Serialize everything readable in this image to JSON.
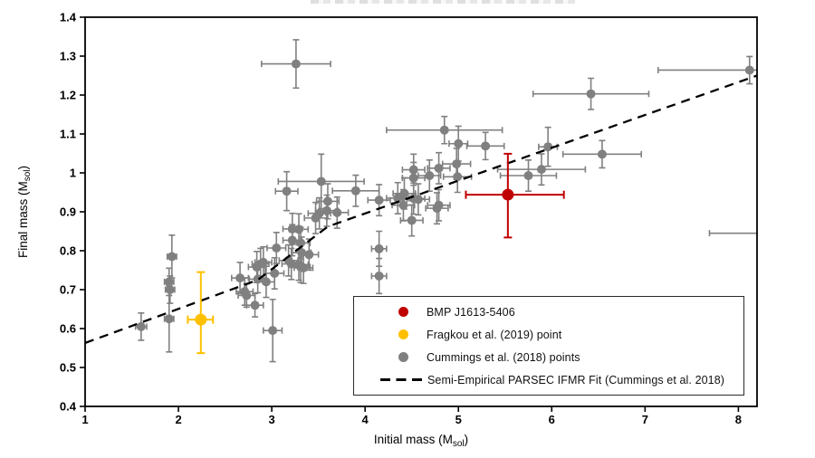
{
  "chart_data": {
    "type": "scatter",
    "title": "",
    "xlabel_pre": "Initial mass (M",
    "xlabel_sub": "sol",
    "xlabel_post": ")",
    "ylabel_pre": "Final mass (M",
    "ylabel_sub": "sol",
    "ylabel_post": ")",
    "x_range": [
      1,
      8.2
    ],
    "y_range": [
      0.4,
      1.4
    ],
    "x_ticks": [
      "1",
      "2",
      "3",
      "4",
      "5",
      "6",
      "7",
      "8"
    ],
    "y_ticks": [
      "0.4",
      "0.5",
      "0.6",
      "0.7",
      "0.8",
      "0.9",
      "1",
      "1.1",
      "1.2",
      "1.3",
      "1.4"
    ],
    "grid": false,
    "legend_position": "inside-bottom-right",
    "frame_color": "#000000",
    "background_color": "#ffffff",
    "series": [
      {
        "name": "BMP J1613-5406",
        "type": "points",
        "color": "#C00000",
        "marker_radius": 6.5,
        "points": [
          {
            "x": 5.53,
            "y": 0.944,
            "exl": 0.45,
            "exr": 0.6,
            "eyl": 0.11,
            "eyu": 0.105
          }
        ]
      },
      {
        "name": "Fragkou et al. (2019) point",
        "type": "points",
        "color": "#FFC000",
        "marker_radius": 6.5,
        "points": [
          {
            "x": 2.24,
            "y": 0.623,
            "exl": 0.14,
            "exr": 0.13,
            "eyl": 0.086,
            "eyu": 0.122
          }
        ]
      },
      {
        "name": "Cummings et al. (2018) points",
        "type": "points",
        "color": "#808080",
        "marker_radius": 5,
        "points_xyee": [
          [
            1.6,
            0.605,
            0.06,
            0.035
          ],
          [
            1.93,
            0.785,
            0.05,
            0.055
          ],
          [
            1.9,
            0.72,
            0.05,
            0.035
          ],
          [
            1.91,
            0.7,
            0.05,
            0.035
          ],
          [
            1.9,
            0.625,
            0.05,
            0.085
          ],
          [
            2.66,
            0.73,
            0.09,
            0.04
          ],
          [
            2.71,
            0.695,
            0.09,
            0.035
          ],
          [
            2.73,
            0.685,
            0.09,
            0.03
          ],
          [
            2.82,
            0.66,
            0.09,
            0.03
          ],
          [
            2.84,
            0.758,
            0.09,
            0.04
          ],
          [
            2.85,
            0.727,
            0.09,
            0.035
          ],
          [
            2.88,
            0.766,
            0.09,
            0.04
          ],
          [
            2.91,
            0.77,
            0.09,
            0.04
          ],
          [
            2.94,
            0.72,
            0.09,
            0.04
          ],
          [
            3.01,
            0.595,
            0.1,
            0.08
          ],
          [
            3.03,
            0.742,
            0.1,
            0.04
          ],
          [
            3.05,
            0.807,
            0.1,
            0.04
          ],
          [
            3.16,
            0.953,
            0.12,
            0.05
          ],
          [
            3.18,
            0.775,
            0.1,
            0.04
          ],
          [
            3.21,
            0.766,
            0.1,
            0.04
          ],
          [
            3.22,
            0.856,
            0.1,
            0.04
          ],
          [
            3.22,
            0.827,
            0.1,
            0.04
          ],
          [
            3.26,
            1.28,
            0.37,
            0.062
          ],
          [
            3.29,
            0.855,
            0.1,
            0.04
          ],
          [
            3.29,
            0.764,
            0.1,
            0.04
          ],
          [
            3.31,
            0.82,
            0.1,
            0.04
          ],
          [
            3.31,
            0.758,
            0.1,
            0.04
          ],
          [
            3.32,
            0.795,
            0.1,
            0.04
          ],
          [
            3.34,
            0.756,
            0.1,
            0.04
          ],
          [
            3.4,
            0.79,
            0.1,
            0.04
          ],
          [
            3.47,
            0.884,
            0.12,
            0.04
          ],
          [
            3.51,
            0.896,
            0.12,
            0.04
          ],
          [
            3.53,
            0.978,
            0.46,
            0.07
          ],
          [
            3.59,
            0.903,
            0.12,
            0.04
          ],
          [
            3.6,
            0.927,
            0.12,
            0.045
          ],
          [
            3.7,
            0.898,
            0.12,
            0.04
          ],
          [
            3.9,
            0.954,
            0.25,
            0.04
          ],
          [
            4.15,
            0.93,
            0.12,
            0.04
          ],
          [
            4.15,
            0.805,
            0.08,
            0.045
          ],
          [
            4.15,
            0.735,
            0.08,
            0.045
          ],
          [
            4.35,
            0.935,
            0.12,
            0.04
          ],
          [
            4.41,
            0.917,
            0.12,
            0.04
          ],
          [
            4.42,
            0.947,
            0.12,
            0.04
          ],
          [
            4.5,
            0.878,
            0.12,
            0.04
          ],
          [
            4.52,
            1.008,
            0.12,
            0.04
          ],
          [
            4.52,
            0.987,
            0.12,
            0.04
          ],
          [
            4.52,
            0.934,
            0.12,
            0.04
          ],
          [
            4.57,
            0.932,
            0.12,
            0.04
          ],
          [
            4.69,
            0.993,
            0.12,
            0.04
          ],
          [
            4.77,
            0.909,
            0.12,
            0.04
          ],
          [
            4.79,
            1.012,
            0.12,
            0.04
          ],
          [
            4.79,
            0.917,
            0.12,
            0.04
          ],
          [
            4.85,
            1.11,
            0.62,
            0.035
          ],
          [
            4.98,
            1.023,
            0.15,
            0.04
          ],
          [
            4.99,
            0.99,
            0.15,
            0.04
          ],
          [
            5.0,
            1.075,
            0.1,
            0.045
          ],
          [
            5.29,
            1.069,
            0.2,
            0.035
          ],
          [
            5.75,
            0.993,
            0.3,
            0.04
          ],
          [
            5.89,
            1.009,
            0.47,
            0.04
          ],
          [
            5.96,
            1.067,
            0.1,
            0.05
          ],
          [
            6.42,
            1.203,
            0.62,
            0.04
          ],
          [
            6.54,
            1.048,
            0.42,
            0.035
          ],
          [
            8.12,
            1.264,
            0.98,
            0.035
          ],
          [
            8.45,
            0.845,
            0.76,
            0.0
          ]
        ]
      },
      {
        "name": "Semi-Empirical PARSEC IFMR Fit (Cummings et al. 2018)",
        "type": "dashed-line",
        "color": "#000000",
        "line_points": [
          [
            1.0,
            0.563
          ],
          [
            2.85,
            0.725
          ],
          [
            3.6,
            0.862
          ],
          [
            8.2,
            1.25
          ]
        ]
      }
    ]
  }
}
